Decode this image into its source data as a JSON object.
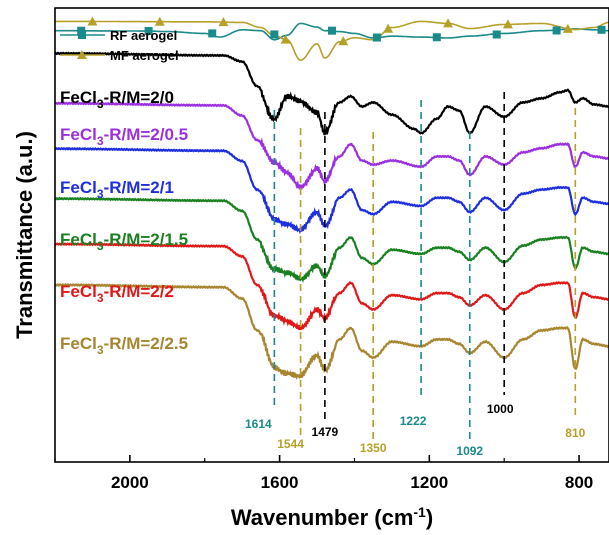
{
  "chart_data": {
    "type": "line",
    "xlabel": "Wavenumber (cm",
    "xlabel_sup": "-1",
    "xlabel_end": ")",
    "ylabel": "Transmittance (a.u.)",
    "xlim": [
      2200,
      720
    ],
    "x_reversed": true,
    "x_ticks": [
      2000,
      1600,
      1200,
      800
    ],
    "x_tick_labels": [
      "2000",
      "1600",
      "1200",
      "800"
    ],
    "legend": {
      "placement": "top-left",
      "entries": [
        {
          "name": "RF aerogel",
          "color": "#1a8a8a",
          "marker": "square"
        },
        {
          "name": "MF aerogel",
          "color": "#b5a12a",
          "marker": "triangle"
        }
      ]
    },
    "series": [
      {
        "name": "RF aerogel",
        "color": "#1a8a8a",
        "offset": 0.93,
        "amp": 0.04,
        "points": [
          [
            2200,
            0.5
          ],
          [
            1950,
            0.48
          ],
          [
            1900,
            0.45
          ],
          [
            1800,
            0.35
          ],
          [
            1760,
            0.15
          ],
          [
            1700,
            0.55
          ],
          [
            1650,
            0.5
          ],
          [
            1614,
            0.0
          ],
          [
            1580,
            0.25
          ],
          [
            1544,
            0.9
          ],
          [
            1500,
            0.7
          ],
          [
            1479,
            0.5
          ],
          [
            1440,
            0.45
          ],
          [
            1400,
            0.35
          ],
          [
            1350,
            0.1
          ],
          [
            1300,
            0.2
          ],
          [
            1222,
            0.15
          ],
          [
            1150,
            0.1
          ],
          [
            1092,
            0.2
          ],
          [
            1000,
            0.35
          ],
          [
            900,
            0.5
          ],
          [
            810,
            0.6
          ],
          [
            760,
            0.55
          ],
          [
            720,
            0.5
          ]
        ]
      },
      {
        "name": "MF aerogel",
        "color": "#b5a12a",
        "offset": 0.93,
        "amp": 0.045,
        "points": [
          [
            2200,
            0.9
          ],
          [
            1800,
            0.88
          ],
          [
            1700,
            0.85
          ],
          [
            1650,
            0.6
          ],
          [
            1614,
            0.2
          ],
          [
            1580,
            0.0
          ],
          [
            1544,
            -1.0
          ],
          [
            1500,
            -0.2
          ],
          [
            1479,
            -0.9
          ],
          [
            1440,
            -0.1
          ],
          [
            1400,
            0.1
          ],
          [
            1350,
            0.0
          ],
          [
            1300,
            0.6
          ],
          [
            1222,
            0.9
          ],
          [
            1150,
            0.8
          ],
          [
            1092,
            0.55
          ],
          [
            1000,
            0.75
          ],
          [
            900,
            0.8
          ],
          [
            810,
            0.5
          ],
          [
            760,
            0.6
          ],
          [
            720,
            0.85
          ]
        ]
      },
      {
        "name": "FeCl3-R/M=2/0",
        "color": "#000000",
        "offset": 0.81,
        "amp": 0.09,
        "points": [
          [
            2200,
            1.0
          ],
          [
            1750,
            0.95
          ],
          [
            1700,
            0.8
          ],
          [
            1660,
            0.2
          ],
          [
            1614,
            -0.6
          ],
          [
            1580,
            -0.1
          ],
          [
            1544,
            -0.2
          ],
          [
            1500,
            -0.4
          ],
          [
            1479,
            -0.9
          ],
          [
            1440,
            -0.2
          ],
          [
            1410,
            -0.05
          ],
          [
            1380,
            -0.3
          ],
          [
            1350,
            -0.2
          ],
          [
            1300,
            -0.5
          ],
          [
            1240,
            -0.85
          ],
          [
            1222,
            -0.95
          ],
          [
            1180,
            -0.6
          ],
          [
            1150,
            -0.3
          ],
          [
            1120,
            -0.4
          ],
          [
            1092,
            -0.95
          ],
          [
            1050,
            -0.3
          ],
          [
            1000,
            -0.55
          ],
          [
            950,
            -0.2
          ],
          [
            900,
            -0.1
          ],
          [
            850,
            0.05
          ],
          [
            830,
            0.1
          ],
          [
            810,
            -0.2
          ],
          [
            790,
            -0.1
          ],
          [
            760,
            -0.25
          ],
          [
            720,
            -0.3
          ]
        ]
      },
      {
        "name": "FeCl3-R/M=2/0.5",
        "color": "#9b30e0",
        "offset": 0.7,
        "amp": 0.09,
        "points": [
          [
            2200,
            1.0
          ],
          [
            1750,
            0.95
          ],
          [
            1700,
            0.7
          ],
          [
            1660,
            0.1
          ],
          [
            1614,
            -0.5
          ],
          [
            1580,
            -0.7
          ],
          [
            1544,
            -1.0
          ],
          [
            1500,
            -0.6
          ],
          [
            1479,
            -0.95
          ],
          [
            1440,
            -0.3
          ],
          [
            1410,
            0.0
          ],
          [
            1380,
            -0.4
          ],
          [
            1350,
            -0.5
          ],
          [
            1300,
            -0.4
          ],
          [
            1222,
            -0.55
          ],
          [
            1180,
            -0.3
          ],
          [
            1150,
            -0.3
          ],
          [
            1120,
            -0.4
          ],
          [
            1092,
            -0.75
          ],
          [
            1050,
            -0.3
          ],
          [
            1000,
            -0.5
          ],
          [
            950,
            -0.2
          ],
          [
            900,
            -0.1
          ],
          [
            850,
            0.0
          ],
          [
            830,
            0.0
          ],
          [
            810,
            -0.55
          ],
          [
            790,
            -0.2
          ],
          [
            760,
            -0.3
          ],
          [
            720,
            -0.35
          ]
        ]
      },
      {
        "name": "FeCl3-R/M=2/1",
        "color": "#1f2fe0",
        "offset": 0.6,
        "amp": 0.09,
        "points": [
          [
            2200,
            1.0
          ],
          [
            1750,
            0.95
          ],
          [
            1700,
            0.7
          ],
          [
            1660,
            0.0
          ],
          [
            1614,
            -0.7
          ],
          [
            1580,
            -0.8
          ],
          [
            1544,
            -1.0
          ],
          [
            1500,
            -0.6
          ],
          [
            1479,
            -0.9
          ],
          [
            1440,
            -0.2
          ],
          [
            1410,
            0.0
          ],
          [
            1380,
            -0.5
          ],
          [
            1350,
            -0.6
          ],
          [
            1300,
            -0.3
          ],
          [
            1222,
            -0.4
          ],
          [
            1180,
            -0.2
          ],
          [
            1150,
            -0.2
          ],
          [
            1120,
            -0.3
          ],
          [
            1092,
            -0.55
          ],
          [
            1050,
            -0.2
          ],
          [
            1000,
            -0.5
          ],
          [
            950,
            -0.1
          ],
          [
            900,
            0.0
          ],
          [
            850,
            0.05
          ],
          [
            830,
            0.05
          ],
          [
            810,
            -0.6
          ],
          [
            790,
            -0.2
          ],
          [
            760,
            -0.3
          ],
          [
            720,
            -0.35
          ]
        ]
      },
      {
        "name": "FeCl3-R/M=2/1.5",
        "color": "#1a8020",
        "offset": 0.49,
        "amp": 0.09,
        "points": [
          [
            2200,
            1.0
          ],
          [
            1750,
            0.95
          ],
          [
            1700,
            0.7
          ],
          [
            1660,
            0.0
          ],
          [
            1614,
            -0.7
          ],
          [
            1580,
            -0.85
          ],
          [
            1544,
            -1.0
          ],
          [
            1500,
            -0.6
          ],
          [
            1479,
            -0.85
          ],
          [
            1440,
            -0.2
          ],
          [
            1410,
            0.05
          ],
          [
            1380,
            -0.45
          ],
          [
            1350,
            -0.6
          ],
          [
            1300,
            -0.25
          ],
          [
            1222,
            -0.35
          ],
          [
            1180,
            -0.2
          ],
          [
            1150,
            -0.2
          ],
          [
            1120,
            -0.3
          ],
          [
            1092,
            -0.5
          ],
          [
            1050,
            -0.2
          ],
          [
            1000,
            -0.55
          ],
          [
            950,
            -0.15
          ],
          [
            900,
            0.0
          ],
          [
            850,
            0.05
          ],
          [
            830,
            0.05
          ],
          [
            810,
            -0.7
          ],
          [
            790,
            -0.2
          ],
          [
            760,
            -0.3
          ],
          [
            720,
            -0.35
          ]
        ]
      },
      {
        "name": "FeCl3-R/M=2/2",
        "color": "#e01818",
        "offset": 0.39,
        "amp": 0.09,
        "points": [
          [
            2200,
            1.0
          ],
          [
            1750,
            0.95
          ],
          [
            1700,
            0.7
          ],
          [
            1660,
            0.0
          ],
          [
            1614,
            -0.8
          ],
          [
            1580,
            -0.9
          ],
          [
            1544,
            -1.0
          ],
          [
            1500,
            -0.6
          ],
          [
            1479,
            -0.85
          ],
          [
            1440,
            -0.2
          ],
          [
            1410,
            0.05
          ],
          [
            1380,
            -0.45
          ],
          [
            1350,
            -0.6
          ],
          [
            1300,
            -0.25
          ],
          [
            1222,
            -0.35
          ],
          [
            1180,
            -0.2
          ],
          [
            1150,
            -0.2
          ],
          [
            1120,
            -0.3
          ],
          [
            1092,
            -0.5
          ],
          [
            1050,
            -0.25
          ],
          [
            1000,
            -0.6
          ],
          [
            950,
            -0.2
          ],
          [
            900,
            0.0
          ],
          [
            850,
            0.05
          ],
          [
            830,
            0.05
          ],
          [
            810,
            -0.8
          ],
          [
            790,
            -0.2
          ],
          [
            760,
            -0.3
          ],
          [
            720,
            -0.35
          ]
        ]
      },
      {
        "name": "FeCl3-R/M=2/2.5",
        "color": "#a88530",
        "offset": 0.29,
        "amp": 0.1,
        "points": [
          [
            2200,
            1.0
          ],
          [
            1750,
            0.95
          ],
          [
            1700,
            0.7
          ],
          [
            1660,
            0.0
          ],
          [
            1614,
            -0.8
          ],
          [
            1580,
            -0.9
          ],
          [
            1544,
            -1.0
          ],
          [
            1500,
            -0.6
          ],
          [
            1479,
            -0.9
          ],
          [
            1440,
            -0.2
          ],
          [
            1410,
            0.05
          ],
          [
            1380,
            -0.45
          ],
          [
            1350,
            -0.6
          ],
          [
            1300,
            -0.25
          ],
          [
            1222,
            -0.35
          ],
          [
            1180,
            -0.2
          ],
          [
            1150,
            -0.2
          ],
          [
            1120,
            -0.3
          ],
          [
            1092,
            -0.5
          ],
          [
            1050,
            -0.25
          ],
          [
            1000,
            -0.6
          ],
          [
            950,
            -0.2
          ],
          [
            900,
            0.0
          ],
          [
            850,
            0.05
          ],
          [
            830,
            0.05
          ],
          [
            810,
            -0.85
          ],
          [
            790,
            -0.2
          ],
          [
            760,
            -0.3
          ],
          [
            720,
            -0.35
          ]
        ]
      }
    ],
    "series_labels": [
      {
        "prefix": "FeCl",
        "sub": "3",
        "suffix": "-R/M=2/0",
        "color": "#000000"
      },
      {
        "prefix": "FeCl",
        "sub": "3",
        "suffix": "-R/M=2/0.5",
        "color": "#9b30e0"
      },
      {
        "prefix": "FeCl",
        "sub": "3",
        "suffix": "-R/M=2/1",
        "color": "#1f2fe0"
      },
      {
        "prefix": "FeCl",
        "sub": "3",
        "suffix": "-R/M=2/1.5",
        "color": "#1a8020"
      },
      {
        "prefix": "FeCl",
        "sub": "3",
        "suffix": "-R/M=2/2",
        "color": "#e01818"
      },
      {
        "prefix": "FeCl",
        "sub": "3",
        "suffix": "-R/M=2/2.5",
        "color": "#a88530"
      }
    ],
    "annotations": [
      {
        "x": 1614,
        "label": "1614",
        "color": "#1a8a8a"
      },
      {
        "x": 1544,
        "label": "1544",
        "color": "#b5a12a"
      },
      {
        "x": 1479,
        "label": "1479",
        "color": "#000000"
      },
      {
        "x": 1350,
        "label": "1350",
        "color": "#b5a12a"
      },
      {
        "x": 1222,
        "label": "1222",
        "color": "#1a8a8a"
      },
      {
        "x": 1092,
        "label": "1092",
        "color": "#1a8a8a"
      },
      {
        "x": 1000,
        "label": "1000",
        "color": "#000000"
      },
      {
        "x": 810,
        "label": "810",
        "color": "#b5a12a"
      }
    ]
  }
}
